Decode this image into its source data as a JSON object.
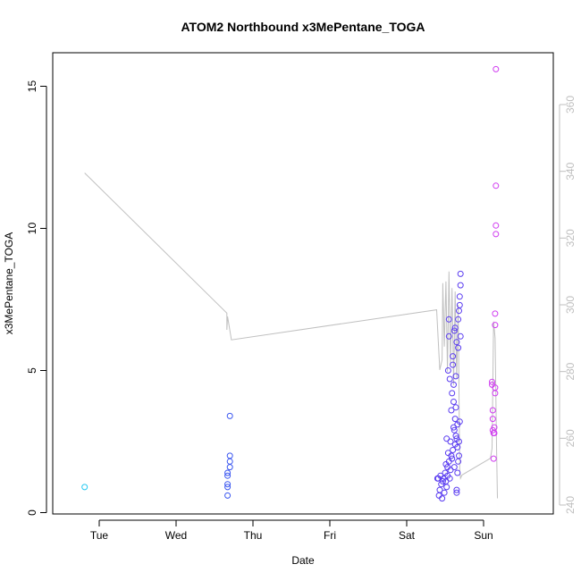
{
  "chart_data": {
    "type": "scatter",
    "title": "ATOM2 Northbound x3MePentane_TOGA",
    "xlabel": "Date",
    "ylabel": "x3MePentane_TOGA",
    "x_ticks": [
      "Tue",
      "Wed",
      "Thu",
      "Fri",
      "Sat",
      "Sun"
    ],
    "x_range": [
      0,
      6.5
    ],
    "ylim": [
      0,
      16
    ],
    "y_ticks": [
      0,
      5,
      10,
      15
    ],
    "right_axis": {
      "ticks": [
        240,
        260,
        280,
        300,
        320,
        340,
        360
      ],
      "range": [
        238,
        372
      ],
      "color": "#bfbfbf"
    },
    "grid": false,
    "legend": "none",
    "series": [
      {
        "color": "#22c8f0",
        "points": [
          [
            0.81,
            0.9
          ]
        ]
      },
      {
        "color": "#3a56f0",
        "points": [
          [
            2.67,
            0.6
          ],
          [
            2.67,
            0.9
          ],
          [
            2.67,
            1.0
          ],
          [
            2.67,
            1.3
          ],
          [
            2.67,
            1.4
          ],
          [
            2.7,
            1.6
          ],
          [
            2.7,
            1.8
          ],
          [
            2.7,
            2.0
          ],
          [
            2.7,
            3.4
          ]
        ]
      },
      {
        "color": "#5a3cf0",
        "points": [
          [
            5.4,
            1.2
          ],
          [
            5.41,
            1.2
          ],
          [
            5.42,
            0.6
          ],
          [
            5.43,
            0.8
          ],
          [
            5.44,
            1.3
          ],
          [
            5.45,
            1.0
          ],
          [
            5.46,
            0.5
          ],
          [
            5.47,
            1.1
          ],
          [
            5.48,
            1.2
          ],
          [
            5.49,
            0.7
          ],
          [
            5.5,
            1.4
          ],
          [
            5.51,
            1.1
          ],
          [
            5.51,
            1.7
          ],
          [
            5.52,
            0.9
          ],
          [
            5.52,
            2.6
          ],
          [
            5.53,
            1.3
          ],
          [
            5.53,
            1.6
          ],
          [
            5.54,
            2.1
          ],
          [
            5.54,
            5.0
          ],
          [
            5.55,
            1.8
          ],
          [
            5.55,
            6.2
          ],
          [
            5.55,
            6.8
          ],
          [
            5.56,
            1.2
          ],
          [
            5.56,
            4.7
          ],
          [
            5.57,
            2.5
          ],
          [
            5.57,
            1.5
          ],
          [
            5.58,
            2.0
          ],
          [
            5.58,
            3.6
          ],
          [
            5.59,
            1.9
          ],
          [
            5.59,
            4.2
          ],
          [
            5.6,
            2.2
          ],
          [
            5.6,
            5.2
          ],
          [
            5.6,
            5.5
          ],
          [
            5.61,
            3.0
          ],
          [
            5.61,
            3.9
          ],
          [
            5.61,
            4.5
          ],
          [
            5.62,
            1.6
          ],
          [
            5.62,
            2.9
          ],
          [
            5.62,
            6.4
          ],
          [
            5.63,
            2.4
          ],
          [
            5.63,
            3.3
          ],
          [
            5.63,
            6.5
          ],
          [
            5.64,
            2.7
          ],
          [
            5.64,
            3.7
          ],
          [
            5.64,
            4.8
          ],
          [
            5.65,
            2.6
          ],
          [
            5.65,
            0.8
          ],
          [
            5.65,
            0.7
          ],
          [
            5.65,
            6.0
          ],
          [
            5.66,
            1.4
          ],
          [
            5.66,
            2.3
          ],
          [
            5.66,
            3.1
          ],
          [
            5.67,
            1.8
          ],
          [
            5.67,
            5.8
          ],
          [
            5.67,
            6.8
          ],
          [
            5.68,
            2.0
          ],
          [
            5.68,
            2.5
          ],
          [
            5.68,
            7.1
          ],
          [
            5.69,
            3.2
          ],
          [
            5.69,
            7.3
          ],
          [
            5.69,
            7.6
          ],
          [
            5.7,
            6.2
          ],
          [
            5.7,
            8.0
          ],
          [
            5.7,
            8.4
          ]
        ]
      },
      {
        "color": "#d03cf0",
        "points": [
          [
            6.11,
            4.6
          ],
          [
            6.11,
            4.5
          ],
          [
            6.12,
            3.6
          ],
          [
            6.12,
            3.3
          ],
          [
            6.12,
            2.9
          ],
          [
            6.13,
            2.8
          ],
          [
            6.13,
            1.9
          ],
          [
            6.14,
            3.0
          ],
          [
            6.14,
            2.8
          ],
          [
            6.15,
            4.2
          ],
          [
            6.15,
            4.4
          ],
          [
            6.15,
            6.6
          ],
          [
            6.15,
            7.0
          ],
          [
            6.16,
            9.8
          ],
          [
            6.16,
            10.1
          ],
          [
            6.16,
            11.5
          ],
          [
            6.16,
            15.6
          ]
        ]
      }
    ],
    "line": {
      "color": "#c0c0c0",
      "axis": "right",
      "points": [
        [
          0.81,
          339.5
        ],
        [
          2.66,
          297.5
        ],
        [
          2.66,
          292.5
        ],
        [
          2.67,
          296.5
        ],
        [
          2.72,
          289.5
        ],
        [
          5.39,
          298.5
        ],
        [
          5.43,
          280.5
        ],
        [
          5.46,
          283.5
        ],
        [
          5.47,
          306.5
        ],
        [
          5.49,
          287.5
        ],
        [
          5.51,
          307
        ],
        [
          5.53,
          280
        ],
        [
          5.55,
          310
        ],
        [
          5.57,
          282
        ],
        [
          5.59,
          305
        ],
        [
          5.61,
          276
        ],
        [
          5.63,
          304
        ],
        [
          5.65,
          278
        ],
        [
          5.67,
          300
        ],
        [
          5.69,
          251
        ],
        [
          5.7,
          248
        ],
        [
          5.72,
          249
        ],
        [
          6.09,
          254
        ],
        [
          6.11,
          257
        ],
        [
          6.13,
          295
        ],
        [
          6.15,
          290
        ],
        [
          6.17,
          256
        ],
        [
          6.18,
          242
        ]
      ]
    }
  }
}
